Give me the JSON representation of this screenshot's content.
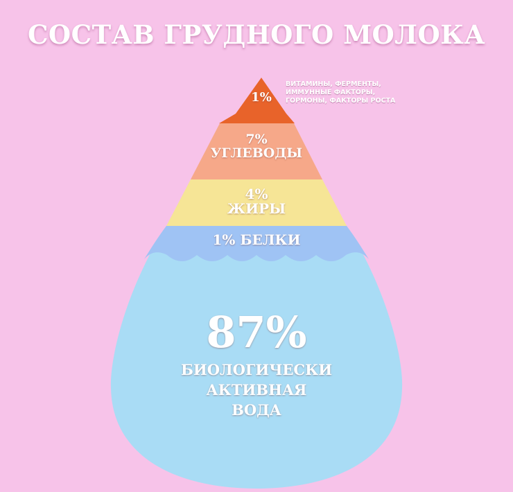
{
  "title": "СОСТАВ ГРУДНОГО МОЛОКА",
  "colors": {
    "background": "#f7c3e9",
    "tier_top": "#e8632a",
    "tier_carbs": "#f6a889",
    "tier_fats": "#f6e596",
    "tier_proteins": "#9fc3f4",
    "water": "#a9dcf5"
  },
  "layers": [
    {
      "percent": "1%",
      "lines": [
        "ВИТАМИНЫ, ФЕРМЕНТЫ,",
        "ИММУННЫЕ ФАКТОРЫ,",
        "ГОРМОНЫ, ФАКТОРЫ РОСТА"
      ]
    },
    {
      "percent": "7%",
      "label": "УГЛЕВОДЫ"
    },
    {
      "percent": "4%",
      "label": "ЖИРЫ"
    },
    {
      "percent": "1%",
      "label": "БЕЛКИ"
    },
    {
      "percent": "87%",
      "lines": [
        "БИОЛОГИЧЕСКИ",
        "АКТИВНАЯ",
        "ВОДА"
      ]
    }
  ]
}
